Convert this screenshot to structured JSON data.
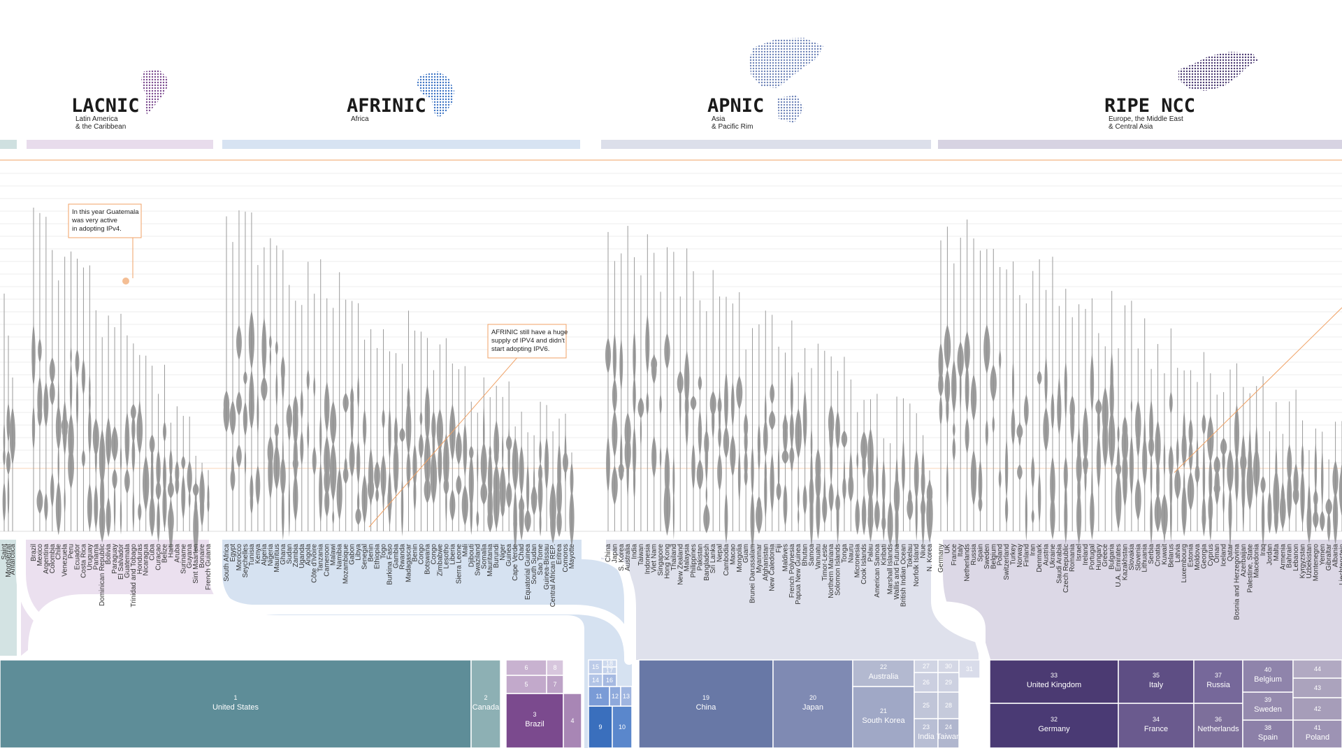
{
  "colors": {
    "lacnic": "#7b4a8e",
    "afrinic": "#3b73c4",
    "apnic": "#6878a6",
    "ripe": "#4b3a72",
    "arin": "#5e8d98",
    "accent": "#f0a266",
    "violin": "#777777"
  },
  "regions": [
    {
      "id": "lacnic",
      "name": "LACNIC",
      "subtitle_lines": [
        "Latin America",
        "& the Caribbean"
      ],
      "map_icon": "south-america-dot-map-icon",
      "countries": [
        "Brazil",
        "Mexico",
        "Argentina",
        "Colombia",
        "Chile",
        "Venezuela",
        "Peru",
        "Ecuador",
        "Costa Rica",
        "Uruguay",
        "Panama",
        "Dominican Republic",
        "Bolivia",
        "Paraguay",
        "El Salvador",
        "Guatemala",
        "Trinidad and Tobago",
        "Honduras",
        "Nicaragua",
        "Cuba",
        "Curaçao",
        "Belize",
        "Haiti",
        "Aruba",
        "Suriname",
        "Guyana",
        "Sint Maarten",
        "Bonaire",
        "French Guiana"
      ]
    },
    {
      "id": "afrinic",
      "name": "AFRINIC",
      "subtitle_lines": [
        "Africa"
      ],
      "map_icon": "africa-dot-map-icon",
      "countries": [
        "South Africa",
        "Egypt",
        "Morocco",
        "Seychelles",
        "Tunisia",
        "Kenya",
        "Algeria",
        "Nigeria",
        "Mauritius",
        "Ghana",
        "Sudan",
        "Zambia",
        "Uganda",
        "Angola",
        "Côte d'Ivoire",
        "Tanzania",
        "Cameroon",
        "Malawi",
        "Namibia",
        "Mozambique",
        "Gabon",
        "Libya",
        "Senegal",
        "Benin",
        "Ethiopia",
        "Togo",
        "Burkina Faso",
        "Gambia",
        "Rwanda",
        "Madagascar",
        "Benin",
        "Congo",
        "Botswana",
        "Congo",
        "Zimbabwe",
        "Lesotho",
        "Liberia",
        "Sierra Leone",
        "Mali",
        "Djibouti",
        "Swaziland",
        "Somalia",
        "Mauritania",
        "Burundi",
        "Niger",
        "Guinea",
        "Cape Verde",
        "Chad",
        "Equatorial Guinea",
        "South Sudan",
        "Sao Tome",
        "Guinea-Bissau",
        "Central African REP.",
        "Eritrea",
        "Comoros",
        "Mayotte"
      ]
    },
    {
      "id": "apnic",
      "name": "APNIC",
      "subtitle_lines": [
        "Asia",
        "& Pacific Rim"
      ],
      "map_icon": "asia-pacific-dot-map-icon",
      "countries": [
        "China",
        "Japan",
        "S. Korea",
        "Australia",
        "India",
        "Taiwan",
        "Indonesia",
        "Viet Nam",
        "Singapore",
        "Hong Kong",
        "Thailand",
        "New Zealand",
        "Malaysia",
        "Philippines",
        "Pakistan",
        "Bangladesh",
        "Sri Lanka",
        "Nepal",
        "Cambodia",
        "Macao",
        "Mongolia",
        "Guam",
        "Brunei Darussalam",
        "Myanmar",
        "Afghanistan",
        "New Caledonia",
        "Fiji",
        "Maldives",
        "French Polynesia",
        "Papua New Guinea",
        "Bhutan",
        "Samoa",
        "Vanuatu",
        "Timor-Leste",
        "Northern Mariana",
        "Solomon Islands",
        "Tonga",
        "Nauru",
        "Micronesia",
        "Cook Islands",
        "Palau",
        "American Samoa",
        "Kiribati",
        "Marshall Islands",
        "Wallis and Futuna",
        "British Indian Ocean",
        "Tokelau",
        "Norfolk Island",
        "Niue",
        "N. Korea"
      ]
    },
    {
      "id": "ripe",
      "name": "RIPE NCC",
      "subtitle_lines": [
        "Europe, the Middle East",
        "& Central Asia"
      ],
      "map_icon": "europe-dot-map-icon",
      "countries": [
        "Germany",
        "UK",
        "France",
        "Italy",
        "Netherlands",
        "Russia",
        "Spain",
        "Sweden",
        "Belgium",
        "Poland",
        "Switzerland",
        "Turkey",
        "Norway",
        "Finland",
        "Iran",
        "Denmark",
        "Austria",
        "Ukraine",
        "Saudi Arabia",
        "Czech Republic",
        "Romania",
        "Israel",
        "Ireland",
        "Portugal",
        "Hungary",
        "Greece",
        "Bulgaria",
        "U.A. Emirates",
        "Kazakhstan",
        "Slovakia",
        "Slovenia",
        "Lithuania",
        "Serbia",
        "Croatia",
        "Kuwait",
        "Belarus",
        "Latvia",
        "Luxembourg",
        "Estonia",
        "Moldova",
        "Georgia",
        "Cyprus",
        "Oman",
        "Iceland",
        "Qatar",
        "Bosnia and Herzegovina",
        "Azerbaijan",
        "Palestine, State",
        "Macedonia",
        "Iraq",
        "Jordan",
        "Malta",
        "Armenia",
        "Bahrain",
        "Lebanon",
        "Kyrgyzstan",
        "Uzbekistan",
        "Montenegro",
        "Yemen",
        "Gibraltar",
        "Albania",
        "Liechtenstein"
      ]
    }
  ],
  "arin_partial_countries": [
    "Saint",
    "Montserrat",
    "Antarctica"
  ],
  "annotations": [
    {
      "id": "guatemala-note",
      "lines": [
        "In this year Guatemala",
        "was very active",
        "in adopting IPv4."
      ]
    },
    {
      "id": "afrinic-note",
      "lines": [
        "AFRINIC still have a huge",
        "supply of IPV4 and didn't",
        "start adopting IPV6."
      ]
    }
  ],
  "treemap": {
    "arin": [
      {
        "rank": "1",
        "label": "United States"
      },
      {
        "rank": "2",
        "label": "Canada"
      }
    ],
    "lacnic": [
      {
        "rank": "3",
        "label": "Brazil"
      },
      {
        "rank": "4",
        "label": ""
      },
      {
        "rank": "5",
        "label": ""
      },
      {
        "rank": "6",
        "label": ""
      },
      {
        "rank": "7",
        "label": ""
      },
      {
        "rank": "8",
        "label": ""
      }
    ],
    "afrinic": [
      {
        "rank": "9",
        "label": ""
      },
      {
        "rank": "10",
        "label": ""
      },
      {
        "rank": "11",
        "label": ""
      },
      {
        "rank": "12",
        "label": ""
      },
      {
        "rank": "13",
        "label": ""
      },
      {
        "rank": "14",
        "label": ""
      },
      {
        "rank": "15",
        "label": ""
      },
      {
        "rank": "16",
        "label": ""
      },
      {
        "rank": "17",
        "label": ""
      },
      {
        "rank": "18",
        "label": ""
      }
    ],
    "apnic": [
      {
        "rank": "19",
        "label": "China"
      },
      {
        "rank": "20",
        "label": "Japan"
      },
      {
        "rank": "21",
        "label": "South Korea"
      },
      {
        "rank": "22",
        "label": "Australia"
      },
      {
        "rank": "23",
        "label": "India"
      },
      {
        "rank": "24",
        "label": "Taiwan"
      },
      {
        "rank": "25",
        "label": ""
      },
      {
        "rank": "26",
        "label": ""
      },
      {
        "rank": "27",
        "label": ""
      },
      {
        "rank": "28",
        "label": ""
      },
      {
        "rank": "29",
        "label": ""
      },
      {
        "rank": "30",
        "label": ""
      },
      {
        "rank": "31",
        "label": ""
      }
    ],
    "ripe": [
      {
        "rank": "32",
        "label": "Germany"
      },
      {
        "rank": "33",
        "label": "United Kingdom"
      },
      {
        "rank": "34",
        "label": "France"
      },
      {
        "rank": "35",
        "label": "Italy"
      },
      {
        "rank": "36",
        "label": "Netherlands"
      },
      {
        "rank": "37",
        "label": "Russia"
      },
      {
        "rank": "38",
        "label": "Spain"
      },
      {
        "rank": "39",
        "label": "Sweden"
      },
      {
        "rank": "40",
        "label": "Belgium"
      },
      {
        "rank": "41",
        "label": "Poland"
      },
      {
        "rank": "42",
        "label": ""
      },
      {
        "rank": "43",
        "label": ""
      },
      {
        "rank": "44",
        "label": ""
      }
    ]
  },
  "chart_data": {
    "type": "violin",
    "title": "",
    "xlabel": "",
    "ylabel": "",
    "grid": true,
    "series": [
      {
        "name": "LACNIC",
        "categories": "regions.0.countries"
      },
      {
        "name": "AFRINIC",
        "categories": "regions.1.countries"
      },
      {
        "name": "APNIC",
        "categories": "regions.2.countries"
      },
      {
        "name": "RIPE NCC",
        "categories": "regions.3.countries"
      }
    ]
  }
}
